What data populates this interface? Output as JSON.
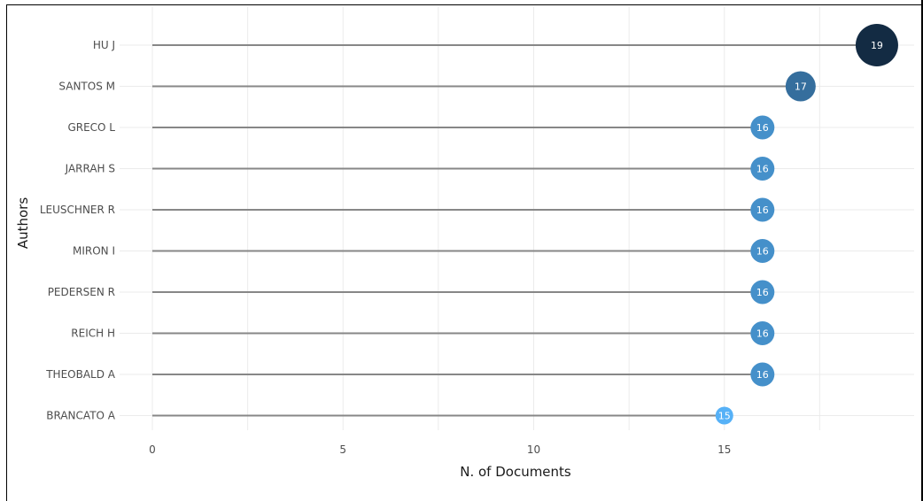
{
  "chart_data": {
    "type": "lollipop",
    "title": "",
    "xlabel": "N. of Documents",
    "ylabel": "Authors",
    "xlim": [
      0,
      19.5
    ],
    "x_ticks": [
      0,
      5,
      10,
      15
    ],
    "x_tick_labels": [
      "0",
      "5",
      "10",
      "15"
    ],
    "grid": true,
    "categories": [
      "HU J",
      "SANTOS M",
      "GRECO L",
      "JARRAH S",
      "LEUSCHNER R",
      "MIRON I",
      "PEDERSEN R",
      "REICH H",
      "THEOBALD A",
      "BRANCATO A"
    ],
    "values": [
      19,
      17,
      16,
      16,
      16,
      16,
      16,
      16,
      16,
      15
    ],
    "value_labels": [
      "19",
      "17",
      "16",
      "16",
      "16",
      "16",
      "16",
      "16",
      "16",
      "15"
    ],
    "color_scale": {
      "low": "#56b1f7",
      "high": "#132b43"
    },
    "stem_color": "#878787"
  }
}
